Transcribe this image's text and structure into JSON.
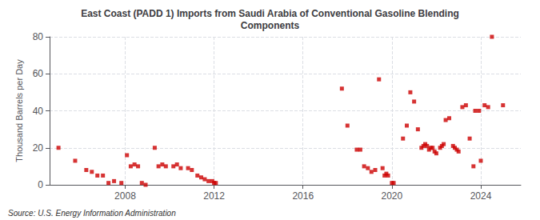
{
  "chart_data": {
    "type": "scatter",
    "title": "East Coast (PADD 1) Imports from Saudi Arabia of Conventional Gasoline Blending\nComponents",
    "ylabel": "Thousand Barrels per Day",
    "annotation": "Source: U.S. Energy Information Administration",
    "color": "#cc0000",
    "marker": "square",
    "grid": true,
    "xlim": [
      2004.6,
      2025.8
    ],
    "xticks": [
      2008,
      2012,
      2016,
      2020,
      2024
    ],
    "ylim": [
      0,
      80
    ],
    "yticks": [
      0,
      20,
      40,
      60,
      80
    ],
    "x": [
      2005.0,
      2005.75,
      2006.25,
      2006.5,
      2006.75,
      2007.0,
      2007.25,
      2007.5,
      2007.83,
      2008.08,
      2008.25,
      2008.42,
      2008.58,
      2008.75,
      2008.92,
      2009.33,
      2009.5,
      2009.67,
      2009.83,
      2010.17,
      2010.33,
      2010.5,
      2010.83,
      2011.0,
      2011.25,
      2011.42,
      2011.58,
      2011.75,
      2011.92,
      2012.0,
      2012.08,
      2017.75,
      2018.0,
      2018.42,
      2018.58,
      2018.75,
      2018.92,
      2019.08,
      2019.25,
      2019.42,
      2019.58,
      2019.67,
      2019.75,
      2019.83,
      2020.0,
      2020.08,
      2020.5,
      2020.67,
      2020.83,
      2021.0,
      2021.17,
      2021.33,
      2021.42,
      2021.5,
      2021.58,
      2021.67,
      2021.75,
      2021.83,
      2021.92,
      2022.0,
      2022.17,
      2022.25,
      2022.33,
      2022.42,
      2022.58,
      2022.75,
      2022.83,
      2022.92,
      2023.0,
      2023.17,
      2023.33,
      2023.5,
      2023.67,
      2023.75,
      2023.92,
      2024.0,
      2024.17,
      2024.33,
      2024.5,
      2025.0
    ],
    "values": [
      20,
      13,
      8,
      7,
      5,
      5,
      1,
      2,
      1,
      16,
      10,
      11,
      10,
      1,
      0,
      20,
      10,
      11,
      10,
      10,
      11,
      9,
      9,
      8,
      5,
      4,
      3,
      2,
      2,
      1,
      1,
      52,
      32,
      19,
      19,
      10,
      9,
      7,
      8,
      57,
      9,
      5,
      6,
      5,
      1,
      1,
      25,
      32,
      50,
      45,
      30,
      20,
      21,
      22,
      21,
      19,
      20,
      20,
      18,
      17,
      20,
      21,
      22,
      35,
      36,
      21,
      20,
      19,
      18,
      42,
      43,
      25,
      10,
      40,
      40,
      13,
      43,
      42,
      80,
      43
    ]
  }
}
